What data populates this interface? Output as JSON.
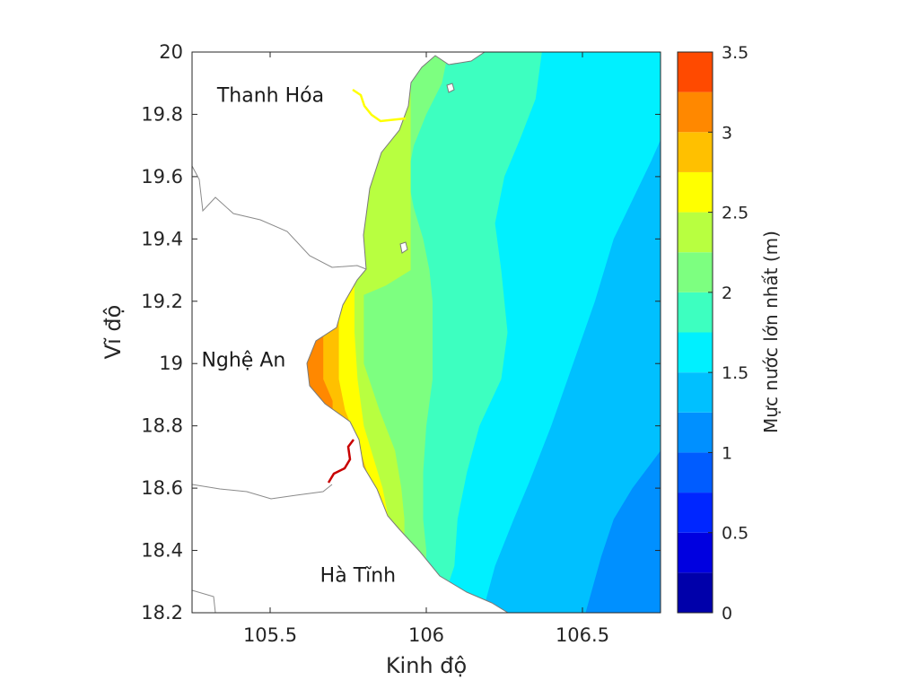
{
  "chart_data": {
    "type": "heatmap",
    "xlabel": "Kinh độ",
    "ylabel": "Vĩ độ",
    "xlim": [
      105.25,
      106.75
    ],
    "ylim": [
      18.2,
      20
    ],
    "xticks": [
      {
        "value": 105.5,
        "label": "105.5"
      },
      {
        "value": 106,
        "label": "106"
      },
      {
        "value": 106.5,
        "label": "106.5"
      }
    ],
    "yticks": [
      {
        "value": 18.2,
        "label": "18.2"
      },
      {
        "value": 18.4,
        "label": "18.4"
      },
      {
        "value": 18.6,
        "label": "18.6"
      },
      {
        "value": 18.8,
        "label": "18.8"
      },
      {
        "value": 19,
        "label": "19"
      },
      {
        "value": 19.2,
        "label": "19.2"
      },
      {
        "value": 19.4,
        "label": "19.4"
      },
      {
        "value": 19.6,
        "label": "19.6"
      },
      {
        "value": 19.8,
        "label": "19.8"
      },
      {
        "value": 20,
        "label": "20"
      }
    ],
    "colorbar": {
      "label": "Mực nước lớn nhất (m)",
      "range": [
        0,
        3.5
      ],
      "step": 0.25,
      "colors": [
        "#0000aa",
        "#0000e0",
        "#0026ff",
        "#005cff",
        "#0090ff",
        "#00c0ff",
        "#00f0ff",
        "#3dffc0",
        "#7dff80",
        "#b8ff40",
        "#ffff00",
        "#ffc000",
        "#ff8800",
        "#ff4a00",
        "#ff0a0a",
        "#c80000",
        "#800000"
      ],
      "ticks": [
        {
          "value": 0,
          "label": "0"
        },
        {
          "value": 0.5,
          "label": "0.5"
        },
        {
          "value": 1,
          "label": "1"
        },
        {
          "value": 1.5,
          "label": "1.5"
        },
        {
          "value": 2,
          "label": "2"
        },
        {
          "value": 2.5,
          "label": "2.5"
        },
        {
          "value": 3,
          "label": "3"
        },
        {
          "value": 3.5,
          "label": "3.5"
        }
      ]
    },
    "bands": [
      {
        "level": 1.0,
        "color": "#00c0ff",
        "boundary": [
          [
            106.83,
            18.82
          ],
          [
            106.75,
            18.72
          ],
          [
            106.66,
            18.6
          ],
          [
            106.6,
            18.5
          ],
          [
            106.56,
            18.38
          ],
          [
            106.51,
            18.2
          ]
        ]
      },
      {
        "level": 1.25,
        "color": "#00f0ff",
        "boundary": [
          [
            106.83,
            19.9
          ],
          [
            106.72,
            19.65
          ],
          [
            106.6,
            19.4
          ],
          [
            106.54,
            19.2
          ],
          [
            106.47,
            19
          ],
          [
            106.4,
            18.8
          ],
          [
            106.33,
            18.62
          ],
          [
            106.28,
            18.5
          ],
          [
            106.22,
            18.35
          ],
          [
            106.18,
            18.2
          ]
        ]
      },
      {
        "level": 1.5,
        "color": "#3dffc0",
        "boundary": [
          [
            106.37,
            20
          ],
          [
            106.35,
            19.85
          ],
          [
            106.3,
            19.72
          ],
          [
            106.25,
            19.6
          ],
          [
            106.22,
            19.45
          ],
          [
            106.24,
            19.3
          ],
          [
            106.26,
            19.1
          ],
          [
            106.24,
            18.95
          ],
          [
            106.17,
            18.8
          ],
          [
            106.13,
            18.65
          ],
          [
            106.1,
            18.5
          ],
          [
            106.09,
            18.35
          ],
          [
            106.04,
            18.2
          ]
        ]
      },
      {
        "level": 1.75,
        "color": "#7dff80",
        "boundary": [
          [
            106.07,
            20
          ],
          [
            106.05,
            19.9
          ],
          [
            106,
            19.8
          ],
          [
            105.96,
            19.7
          ],
          [
            105.94,
            19.6
          ],
          [
            105.96,
            19.5
          ],
          [
            105.99,
            19.4
          ],
          [
            106.01,
            19.3
          ],
          [
            106.02,
            19.2
          ],
          [
            106.02,
            19.1
          ],
          [
            106.02,
            18.95
          ],
          [
            106,
            18.8
          ],
          [
            105.99,
            18.65
          ],
          [
            105.99,
            18.5
          ],
          [
            106,
            18.4
          ]
        ]
      },
      {
        "level": 2.0,
        "color": "#b8ff40",
        "boundary": [
          [
            105.95,
            19.3
          ],
          [
            105.87,
            19.25
          ],
          [
            105.8,
            19.22
          ],
          [
            105.8,
            19
          ],
          [
            105.85,
            18.85
          ],
          [
            105.9,
            18.72
          ],
          [
            105.92,
            18.6
          ],
          [
            105.93,
            18.5
          ]
        ]
      },
      {
        "level": 2.25,
        "color": "#ffff00",
        "boundary": [
          [
            105.77,
            19.1
          ],
          [
            105.78,
            18.95
          ],
          [
            105.8,
            18.8
          ],
          [
            105.83,
            18.7
          ],
          [
            105.86,
            18.6
          ],
          [
            105.88,
            18.5
          ]
        ]
      },
      {
        "level": 2.5,
        "color": "#ffc000",
        "boundary": [
          [
            105.72,
            19.07
          ],
          [
            105.72,
            18.95
          ],
          [
            105.74,
            18.85
          ],
          [
            105.78,
            18.75
          ],
          [
            105.82,
            18.62
          ],
          [
            105.85,
            18.52
          ]
        ]
      },
      {
        "level": 2.75,
        "color": "#ff8800",
        "boundary": [
          [
            105.67,
            19.05
          ],
          [
            105.67,
            18.95
          ],
          [
            105.7,
            18.88
          ]
        ]
      }
    ],
    "labels": [
      {
        "text": "Thanh Hóa",
        "lon": 105.33,
        "lat": 19.84
      },
      {
        "text": "Nghệ An",
        "lon": 105.28,
        "lat": 18.99
      },
      {
        "text": "Hà Tĩnh",
        "lon": 105.66,
        "lat": 18.3
      }
    ]
  }
}
